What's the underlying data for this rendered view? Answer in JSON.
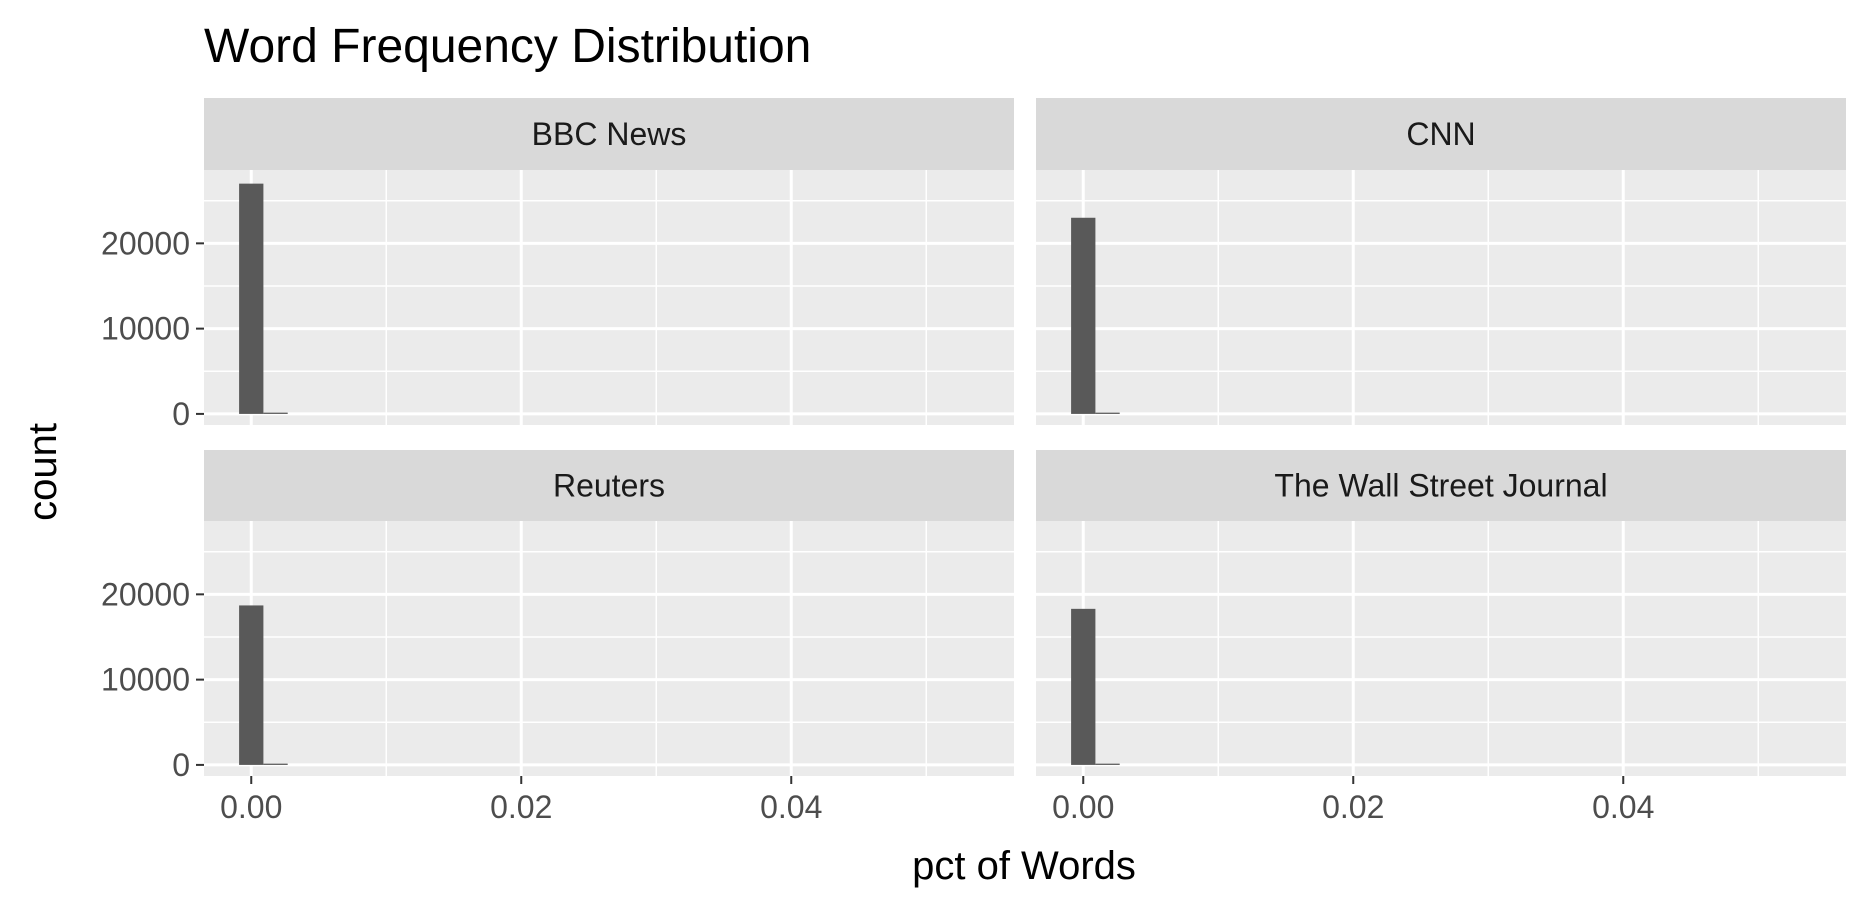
{
  "chart_data": {
    "type": "bar",
    "title": "Word Frequency Distribution",
    "xlabel": "pct of Words",
    "ylabel": "count",
    "x_ticks": [
      "0.00",
      "0.02",
      "0.04"
    ],
    "y_ticks": [
      "0",
      "10000",
      "20000"
    ],
    "xlim": [
      -0.0035,
      0.0565
    ],
    "ylim": [
      -1300,
      28600
    ],
    "bin_width": 0.0018,
    "grid": true,
    "panels": [
      {
        "name": "BBC News",
        "bins": [
          0.0,
          0.0018
        ],
        "counts": [
          27000,
          150
        ]
      },
      {
        "name": "CNN",
        "bins": [
          0.0,
          0.0018
        ],
        "counts": [
          23000,
          150
        ]
      },
      {
        "name": "Reuters",
        "bins": [
          0.0,
          0.0018
        ],
        "counts": [
          18700,
          150
        ]
      },
      {
        "name": "The Wall Street Journal",
        "bins": [
          0.0,
          0.0018
        ],
        "counts": [
          18300,
          150
        ]
      }
    ],
    "colors": {
      "panel_background": "#ebebeb",
      "strip_background": "#d9d9d9",
      "grid": "#ffffff",
      "bar": "#595959",
      "tick_text": "#4d4d4d"
    }
  }
}
